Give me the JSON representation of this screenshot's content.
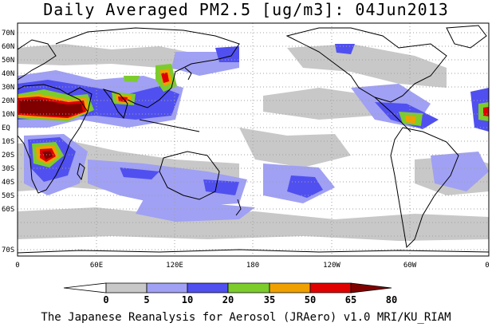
{
  "title": "Daily Averaged PM2.5 [ug/m3]: 04Jun2013",
  "credit": "The Japanese Reanalysis for Aerosol (JRAero) v1.0 MRI/KU_RIAM",
  "map": {
    "lon_ticks": [
      "0",
      "60E",
      "120E",
      "180",
      "120W",
      "60W",
      "0"
    ],
    "lat_ticks": [
      "70N",
      "60N",
      "50N",
      "40N",
      "30N",
      "20N",
      "10N",
      "EQ",
      "10S",
      "20S",
      "30S",
      "40S",
      "50S",
      "60S",
      "70S"
    ]
  },
  "colorbar": {
    "ticks": [
      "0",
      "5",
      "10",
      "20",
      "35",
      "50",
      "65",
      "80"
    ],
    "colors": [
      "#ffffff",
      "#c8c8c8",
      "#a0a0f4",
      "#5050f0",
      "#7ccc2c",
      "#f0a000",
      "#e00000",
      "#800000"
    ]
  },
  "colors": {
    "land_outline": "#000000",
    "grid": "#a0a0a0"
  }
}
